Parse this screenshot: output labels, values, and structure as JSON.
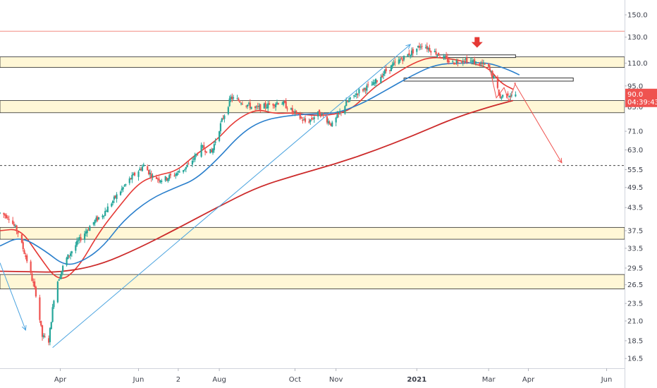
{
  "chart_data": {
    "type": "candlestick",
    "price_axis": {
      "ticks": [
        150.0,
        130.0,
        110.0,
        95.0,
        83.0,
        71.0,
        63.0,
        55.5,
        49.5,
        43.5,
        37.5,
        33.5,
        29.5,
        26.5,
        23.5,
        21.0,
        18.5,
        16.5
      ],
      "tick_labels": [
        "150.0",
        "130.0",
        "110.0",
        "95.0",
        "83.0",
        "71.0",
        "63.0",
        "55.5",
        "49.5",
        "43.5",
        "37.5",
        "33.5",
        "29.5",
        "26.5",
        "23.5",
        "21.0",
        "18.5",
        "16.5"
      ],
      "scale": "log",
      "range": [
        15.5,
        165.0
      ]
    },
    "time_axis": {
      "range": [
        "2020-02-14",
        "2021-06-15"
      ],
      "ticks": [
        {
          "date": "2020-04-01",
          "label": "Apr",
          "bold": false
        },
        {
          "date": "2020-06-01",
          "label": "Jun",
          "bold": false
        },
        {
          "date": "2020-07-02",
          "label": "2",
          "bold": false
        },
        {
          "date": "2020-08-03",
          "label": "Aug",
          "bold": false
        },
        {
          "date": "2020-10-01",
          "label": "Oct",
          "bold": false
        },
        {
          "date": "2020-11-02",
          "label": "Nov",
          "bold": false
        },
        {
          "date": "2021-01-04",
          "label": "2021",
          "bold": true
        },
        {
          "date": "2021-03-01",
          "label": "Mar",
          "bold": false
        },
        {
          "date": "2021-04-01",
          "label": "Apr",
          "bold": false
        },
        {
          "date": "2021-06-01",
          "label": "Jun",
          "bold": false
        }
      ]
    },
    "last_price": {
      "value": 90.0,
      "label": "90.0",
      "countdown": "04:39:43",
      "color": "#ef5350"
    },
    "support_resistance_zones": [
      {
        "low": 107.0,
        "high": 114.5
      },
      {
        "low": 80.0,
        "high": 86.5
      },
      {
        "low": 35.5,
        "high": 38.3
      },
      {
        "low": 25.8,
        "high": 28.3
      }
    ],
    "horizontal_lines": [
      {
        "price": 135.0,
        "style": "solid",
        "color": "#f28b82"
      },
      {
        "price": 57.0,
        "style": "dashed",
        "color": "#444444"
      }
    ],
    "rectangles": [
      {
        "from": "2021-01-20",
        "to": "2021-03-22",
        "low": 114.0,
        "high": 116.0
      },
      {
        "from": "2020-12-25",
        "to": "2021-05-06",
        "low": 98.0,
        "high": 100.0
      }
    ],
    "trend_lines": [
      {
        "from": {
          "date": "2020-03-26",
          "price": 17.7
        },
        "to": {
          "date": "2020-12-30",
          "price": 124.0
        },
        "color": "#4aa3df",
        "arrow": true
      },
      {
        "from": {
          "date": "2020-02-14",
          "price": 30.5
        },
        "to": {
          "date": "2020-03-05",
          "price": 19.8
        },
        "color": "#4aa3df",
        "arrow": true
      },
      {
        "from": {
          "date": "2021-03-21",
          "price": 97.0
        },
        "to": {
          "date": "2021-04-27",
          "price": 58.0
        },
        "color": "#ef5350",
        "arrow": true
      }
    ],
    "polyline_pattern": [
      {
        "date": "2021-03-01",
        "price": 110.0
      },
      {
        "date": "2021-03-07",
        "price": 88.0
      },
      {
        "date": "2021-03-13",
        "price": 94.0
      },
      {
        "date": "2021-03-17",
        "price": 86.0
      },
      {
        "date": "2021-03-22",
        "price": 97.0
      }
    ],
    "marker": {
      "type": "down-arrow",
      "date": "2021-02-20",
      "price": 122.0,
      "color": "#e53935"
    },
    "moving_averages": [
      {
        "color": "#e53935",
        "points": [
          [
            "2020-02-14",
            37.5
          ],
          [
            "2020-03-01",
            38.0
          ],
          [
            "2020-03-15",
            32.0
          ],
          [
            "2020-03-31",
            26.8
          ],
          [
            "2020-04-15",
            29.5
          ],
          [
            "2020-05-01",
            37.0
          ],
          [
            "2020-05-15",
            43.0
          ],
          [
            "2020-06-01",
            51.0
          ],
          [
            "2020-06-15",
            53.5
          ],
          [
            "2020-07-01",
            55.0
          ],
          [
            "2020-07-15",
            61.0
          ],
          [
            "2020-08-01",
            67.0
          ],
          [
            "2020-08-15",
            76.0
          ],
          [
            "2020-09-01",
            82.0
          ],
          [
            "2020-09-15",
            79.5
          ],
          [
            "2020-10-01",
            80.0
          ],
          [
            "2020-10-15",
            78.5
          ],
          [
            "2020-11-01",
            79.0
          ],
          [
            "2020-11-15",
            82.0
          ],
          [
            "2020-12-01",
            94.0
          ],
          [
            "2020-12-15",
            101.0
          ],
          [
            "2021-01-01",
            110.0
          ],
          [
            "2021-01-15",
            114.5
          ],
          [
            "2021-02-01",
            113.0
          ],
          [
            "2021-02-15",
            110.0
          ],
          [
            "2021-03-01",
            107.0
          ],
          [
            "2021-03-10",
            97.0
          ],
          [
            "2021-03-20",
            93.0
          ]
        ]
      },
      {
        "color": "#2a7fcc",
        "points": [
          [
            "2020-02-14",
            34.0
          ],
          [
            "2020-03-01",
            36.2
          ],
          [
            "2020-03-20",
            33.0
          ],
          [
            "2020-04-05",
            29.8
          ],
          [
            "2020-04-20",
            31.0
          ],
          [
            "2020-05-05",
            34.0
          ],
          [
            "2020-05-20",
            40.0
          ],
          [
            "2020-06-10",
            46.0
          ],
          [
            "2020-06-30",
            49.5
          ],
          [
            "2020-07-15",
            52.0
          ],
          [
            "2020-08-01",
            59.0
          ],
          [
            "2020-08-20",
            70.0
          ],
          [
            "2020-09-05",
            76.0
          ],
          [
            "2020-09-25",
            78.5
          ],
          [
            "2020-10-15",
            79.5
          ],
          [
            "2020-11-01",
            79.5
          ],
          [
            "2020-11-20",
            84.0
          ],
          [
            "2020-12-10",
            92.0
          ],
          [
            "2021-01-01",
            102.0
          ],
          [
            "2021-01-20",
            109.5
          ],
          [
            "2021-02-10",
            110.0
          ],
          [
            "2021-02-28",
            110.5
          ],
          [
            "2021-03-15",
            106.0
          ],
          [
            "2021-03-25",
            102.0
          ]
        ]
      },
      {
        "color": "#cc2a2a",
        "points": [
          [
            "2020-02-14",
            28.9
          ],
          [
            "2020-03-10",
            28.8
          ],
          [
            "2020-04-01",
            28.7
          ],
          [
            "2020-05-01",
            30.0
          ],
          [
            "2020-06-01",
            33.5
          ],
          [
            "2020-07-01",
            38.0
          ],
          [
            "2020-08-01",
            43.5
          ],
          [
            "2020-09-01",
            49.5
          ],
          [
            "2020-10-01",
            53.5
          ],
          [
            "2020-11-01",
            57.5
          ],
          [
            "2020-12-01",
            62.5
          ],
          [
            "2021-01-01",
            69.0
          ],
          [
            "2021-02-01",
            77.0
          ],
          [
            "2021-03-01",
            83.0
          ],
          [
            "2021-03-20",
            86.5
          ]
        ]
      }
    ],
    "price_path": [
      [
        "2020-02-14",
        42
      ],
      [
        "2020-02-21",
        41
      ],
      [
        "2020-02-28",
        37
      ],
      [
        "2020-03-06",
        31
      ],
      [
        "2020-03-13",
        25
      ],
      [
        "2020-03-18",
        19
      ],
      [
        "2020-03-23",
        18.5
      ],
      [
        "2020-03-28",
        26
      ],
      [
        "2020-04-05",
        31
      ],
      [
        "2020-04-15",
        35
      ],
      [
        "2020-04-25",
        39
      ],
      [
        "2020-05-05",
        42
      ],
      [
        "2020-05-15",
        47
      ],
      [
        "2020-05-25",
        52
      ],
      [
        "2020-06-05",
        57
      ],
      [
        "2020-06-12",
        53
      ],
      [
        "2020-06-20",
        52
      ],
      [
        "2020-06-30",
        54
      ],
      [
        "2020-07-10",
        57
      ],
      [
        "2020-07-20",
        64
      ],
      [
        "2020-07-28",
        62
      ],
      [
        "2020-08-05",
        76
      ],
      [
        "2020-08-12",
        88
      ],
      [
        "2020-08-20",
        86
      ],
      [
        "2020-08-31",
        82
      ],
      [
        "2020-09-10",
        84
      ],
      [
        "2020-09-20",
        86
      ],
      [
        "2020-09-30",
        80
      ],
      [
        "2020-10-10",
        75
      ],
      [
        "2020-10-20",
        80
      ],
      [
        "2020-10-30",
        74
      ],
      [
        "2020-11-10",
        85
      ],
      [
        "2020-11-20",
        92
      ],
      [
        "2020-12-01",
        96
      ],
      [
        "2020-12-10",
        104
      ],
      [
        "2020-12-20",
        111
      ],
      [
        "2020-12-31",
        118
      ],
      [
        "2021-01-08",
        124
      ],
      [
        "2021-01-20",
        117
      ],
      [
        "2021-01-31",
        110
      ],
      [
        "2021-02-10",
        113
      ],
      [
        "2021-02-20",
        110
      ],
      [
        "2021-02-28",
        108
      ],
      [
        "2021-03-05",
        100
      ],
      [
        "2021-03-10",
        88
      ],
      [
        "2021-03-15",
        91
      ],
      [
        "2021-03-19",
        89
      ],
      [
        "2021-03-22",
        90
      ]
    ]
  }
}
